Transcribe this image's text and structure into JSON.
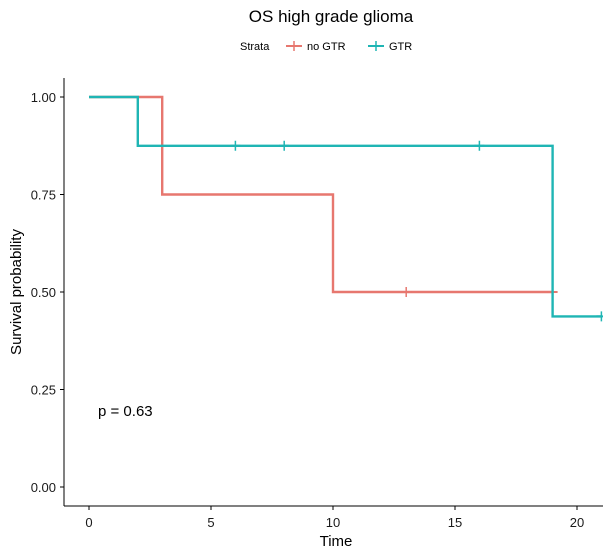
{
  "chart_data": {
    "type": "line",
    "title": "OS high grade glioma",
    "xlabel": "Time",
    "ylabel": "Survival probability",
    "xlim": [
      -1,
      21
    ],
    "ylim": [
      0,
      1
    ],
    "x_ticks": [
      0,
      5,
      10,
      15,
      20
    ],
    "x_tick_labels": [
      "0",
      "5",
      "10",
      "15",
      "20"
    ],
    "y_ticks": [
      0,
      0.25,
      0.5,
      0.75,
      1
    ],
    "y_tick_labels": [
      "0.00",
      "0.25",
      "0.50",
      "0.75",
      "1.00"
    ],
    "grid": false,
    "legend": {
      "title": "Strata",
      "placement": "top",
      "entries": [
        "no GTR",
        "GTR"
      ]
    },
    "annotation": "p = 0.63",
    "series": [
      {
        "name": "no GTR",
        "color": "#E7776F",
        "step_points": [
          [
            0,
            1.0
          ],
          [
            3,
            1.0
          ],
          [
            3,
            0.75
          ],
          [
            10,
            0.75
          ],
          [
            10,
            0.5
          ],
          [
            19,
            0.5
          ]
        ],
        "censor_marks": [
          [
            13,
            0.5
          ],
          [
            19,
            0.5
          ]
        ]
      },
      {
        "name": "GTR",
        "color": "#1FB5B4",
        "step_points": [
          [
            0,
            1.0
          ],
          [
            2,
            1.0
          ],
          [
            2,
            0.875
          ],
          [
            19,
            0.875
          ],
          [
            19,
            0.4375
          ],
          [
            21,
            0.4375
          ]
        ],
        "censor_marks": [
          [
            6,
            0.875
          ],
          [
            8,
            0.875
          ],
          [
            16,
            0.875
          ],
          [
            21,
            0.4375
          ]
        ]
      }
    ]
  }
}
